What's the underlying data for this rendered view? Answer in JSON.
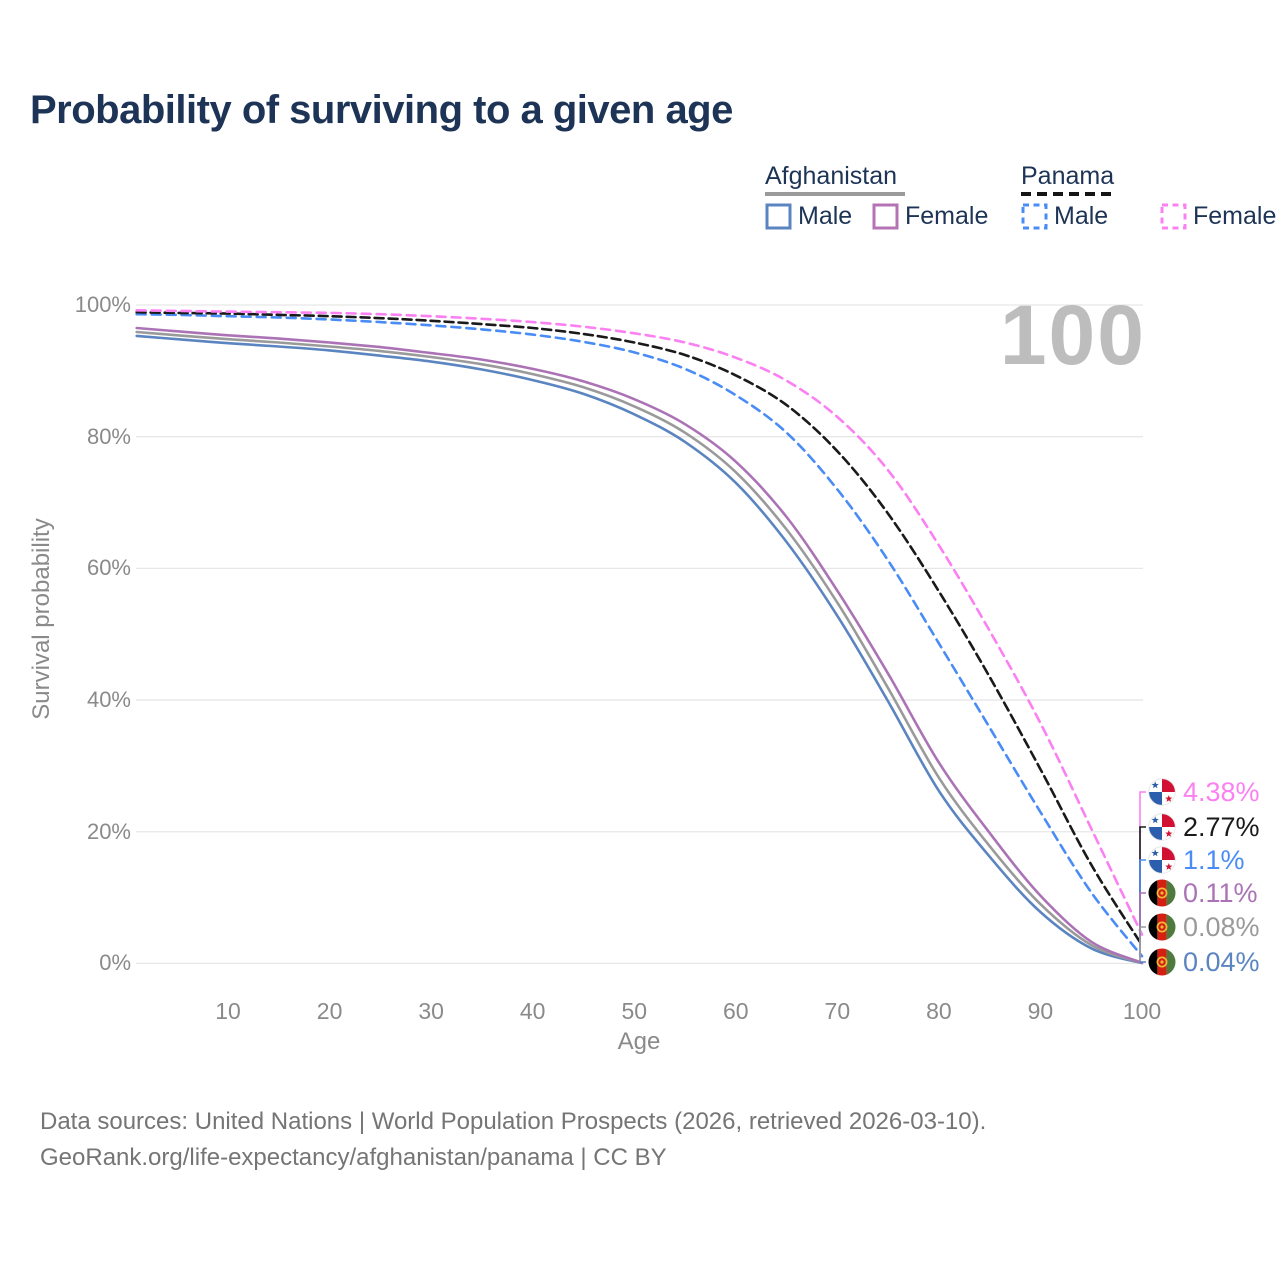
{
  "title": "Probability of surviving to a given age",
  "watermark": "100",
  "legend": {
    "groups": [
      {
        "label": "Afghanistan",
        "line_style": "solid",
        "underline_color": "#9b9b9b",
        "items": [
          {
            "label": "Male",
            "color": "#5b85c0"
          },
          {
            "label": "Female",
            "color": "#b573b5"
          }
        ]
      },
      {
        "label": "Panama",
        "line_style": "dashed",
        "underline_color": "#141414",
        "items": [
          {
            "label": "Male",
            "color": "#4a8cf5"
          },
          {
            "label": "Female",
            "color": "#fb80f1"
          }
        ]
      }
    ]
  },
  "axes": {
    "y_label": "Survival probability",
    "x_label": "Age",
    "y_ticks": [
      "0%",
      "20%",
      "40%",
      "60%",
      "80%",
      "100%"
    ],
    "y_tick_values": [
      0,
      20,
      40,
      60,
      80,
      100
    ],
    "x_ticks": [
      "10",
      "20",
      "30",
      "40",
      "50",
      "60",
      "70",
      "80",
      "90",
      "100"
    ],
    "x_tick_values": [
      10,
      20,
      30,
      40,
      50,
      60,
      70,
      80,
      90,
      100
    ]
  },
  "chart_data": {
    "type": "line",
    "title": "Probability of surviving to a given age",
    "xlabel": "Age",
    "ylabel": "Survival probability",
    "xlim": [
      0,
      100
    ],
    "ylim": [
      0,
      100
    ],
    "grid": "horizontal",
    "legend_position": "top-right",
    "series": [
      {
        "id": "panama-female",
        "country": "Panama",
        "sex": "Female",
        "color": "#fb80f1",
        "dash": "9 6",
        "end_label": "4.38%",
        "points": [
          [
            1,
            99.2
          ],
          [
            5,
            99.1
          ],
          [
            10,
            99.0
          ],
          [
            15,
            98.9
          ],
          [
            20,
            98.8
          ],
          [
            25,
            98.6
          ],
          [
            30,
            98.3
          ],
          [
            35,
            97.9
          ],
          [
            40,
            97.4
          ],
          [
            45,
            96.7
          ],
          [
            50,
            95.7
          ],
          [
            55,
            94.3
          ],
          [
            60,
            92.0
          ],
          [
            65,
            88.5
          ],
          [
            70,
            83.0
          ],
          [
            75,
            74.9
          ],
          [
            80,
            63.5
          ],
          [
            85,
            50.5
          ],
          [
            90,
            36.5
          ],
          [
            95,
            20.5
          ],
          [
            100,
            4.38
          ]
        ]
      },
      {
        "id": "panama-total",
        "country": "Panama",
        "sex": "Both",
        "color": "#1a1a1a",
        "dash": "9 5",
        "end_label": "2.77%",
        "points": [
          [
            1,
            98.9
          ],
          [
            5,
            98.8
          ],
          [
            10,
            98.7
          ],
          [
            15,
            98.5
          ],
          [
            20,
            98.3
          ],
          [
            25,
            98.0
          ],
          [
            30,
            97.6
          ],
          [
            35,
            97.1
          ],
          [
            40,
            96.5
          ],
          [
            45,
            95.6
          ],
          [
            50,
            94.3
          ],
          [
            55,
            92.4
          ],
          [
            60,
            89.3
          ],
          [
            65,
            84.8
          ],
          [
            70,
            77.8
          ],
          [
            75,
            68.3
          ],
          [
            80,
            56.5
          ],
          [
            85,
            43.5
          ],
          [
            90,
            29.5
          ],
          [
            95,
            15.0
          ],
          [
            100,
            2.77
          ]
        ]
      },
      {
        "id": "panama-male",
        "country": "Panama",
        "sex": "Male",
        "color": "#4a8cf5",
        "dash": "9 6",
        "end_label": "1.1%",
        "points": [
          [
            1,
            98.6
          ],
          [
            5,
            98.5
          ],
          [
            10,
            98.3
          ],
          [
            15,
            98.1
          ],
          [
            20,
            97.8
          ],
          [
            25,
            97.4
          ],
          [
            30,
            96.9
          ],
          [
            35,
            96.3
          ],
          [
            40,
            95.5
          ],
          [
            45,
            94.4
          ],
          [
            50,
            92.8
          ],
          [
            55,
            90.3
          ],
          [
            60,
            86.3
          ],
          [
            65,
            80.6
          ],
          [
            70,
            72.0
          ],
          [
            75,
            61.2
          ],
          [
            80,
            48.6
          ],
          [
            85,
            35.8
          ],
          [
            90,
            23.0
          ],
          [
            95,
            10.8
          ],
          [
            100,
            1.1
          ]
        ]
      },
      {
        "id": "afghanistan-female",
        "country": "Afghanistan",
        "sex": "Female",
        "color": "#ab73b5",
        "dash": "",
        "end_label": "0.11%",
        "points": [
          [
            1,
            96.5
          ],
          [
            5,
            96.0
          ],
          [
            10,
            95.4
          ],
          [
            15,
            94.9
          ],
          [
            20,
            94.3
          ],
          [
            25,
            93.6
          ],
          [
            30,
            92.7
          ],
          [
            35,
            91.7
          ],
          [
            40,
            90.3
          ],
          [
            45,
            88.4
          ],
          [
            50,
            85.7
          ],
          [
            55,
            81.9
          ],
          [
            60,
            76.2
          ],
          [
            65,
            67.8
          ],
          [
            70,
            56.6
          ],
          [
            75,
            44.0
          ],
          [
            80,
            30.5
          ],
          [
            85,
            19.8
          ],
          [
            90,
            10.3
          ],
          [
            95,
            3.3
          ],
          [
            100,
            0.11
          ]
        ]
      },
      {
        "id": "afghanistan-total",
        "country": "Afghanistan",
        "sex": "Both",
        "color": "#9a9a9a",
        "dash": "",
        "end_label": "0.08%",
        "points": [
          [
            1,
            95.9
          ],
          [
            5,
            95.4
          ],
          [
            10,
            94.8
          ],
          [
            15,
            94.3
          ],
          [
            20,
            93.7
          ],
          [
            25,
            93.0
          ],
          [
            30,
            92.1
          ],
          [
            35,
            91.0
          ],
          [
            40,
            89.5
          ],
          [
            45,
            87.5
          ],
          [
            50,
            84.6
          ],
          [
            55,
            80.6
          ],
          [
            60,
            74.6
          ],
          [
            65,
            65.9
          ],
          [
            70,
            54.8
          ],
          [
            75,
            41.8
          ],
          [
            80,
            28.2
          ],
          [
            85,
            17.8
          ],
          [
            90,
            9.0
          ],
          [
            95,
            2.8
          ],
          [
            100,
            0.08
          ]
        ]
      },
      {
        "id": "afghanistan-male",
        "country": "Afghanistan",
        "sex": "Male",
        "color": "#5b85c0",
        "dash": "",
        "end_label": "0.04%",
        "points": [
          [
            1,
            95.3
          ],
          [
            5,
            94.8
          ],
          [
            10,
            94.2
          ],
          [
            15,
            93.7
          ],
          [
            20,
            93.1
          ],
          [
            25,
            92.3
          ],
          [
            30,
            91.4
          ],
          [
            35,
            90.2
          ],
          [
            40,
            88.6
          ],
          [
            45,
            86.5
          ],
          [
            50,
            83.4
          ],
          [
            55,
            79.2
          ],
          [
            60,
            73.0
          ],
          [
            65,
            64.0
          ],
          [
            70,
            52.8
          ],
          [
            75,
            39.8
          ],
          [
            80,
            26.2
          ],
          [
            85,
            16.2
          ],
          [
            90,
            7.8
          ],
          [
            95,
            2.3
          ],
          [
            100,
            0.04
          ]
        ]
      }
    ],
    "end_labels": [
      {
        "value": "4.38%",
        "series": "panama-female",
        "flag": "panama",
        "color": "#fb80f1"
      },
      {
        "value": "2.77%",
        "series": "panama-total",
        "flag": "panama",
        "color": "#1a1a1a"
      },
      {
        "value": "1.1%",
        "series": "panama-male",
        "flag": "panama",
        "color": "#4a8cf5"
      },
      {
        "value": "0.11%",
        "series": "afghanistan-female",
        "flag": "afghanistan",
        "color": "#ab73b5"
      },
      {
        "value": "0.08%",
        "series": "afghanistan-total",
        "flag": "afghanistan",
        "color": "#9a9a9a"
      },
      {
        "value": "0.04%",
        "series": "afghanistan-male",
        "flag": "afghanistan",
        "color": "#5b85c0"
      }
    ]
  },
  "flags": {
    "panama": {
      "blue": "#2b5fad",
      "red": "#d21034",
      "white": "#ffffff"
    },
    "afghanistan": {
      "black": "#000000",
      "red": "#d32011",
      "green": "#4e7a3d",
      "gold": "#f0b837"
    }
  },
  "colors": {
    "title_text": "#1d3456",
    "gridline": "#e7e7e7",
    "axis_text": "#8a8a8a",
    "watermark": "#bdbdbd",
    "footer_text": "#757575"
  },
  "footer": {
    "line1": "Data sources: United Nations | World Population Prospects (2026, retrieved 2026-03-10).",
    "line2": "GeoRank.org/life-expectancy/afghanistan/panama | CC BY"
  }
}
